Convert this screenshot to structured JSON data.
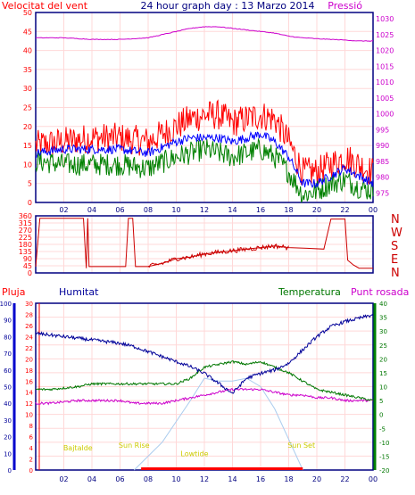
{
  "header": {
    "left_title": "Velocitat del vent",
    "center_title": "24 hour graph day : 13 Marzo 2014",
    "right_title": "Pressió"
  },
  "colors": {
    "wind_avg": "#0000ff",
    "gust": "#ff0000",
    "wind_min": "#008000",
    "pressure": "#cc00cc",
    "direction": "#cc0000",
    "humidity": "#000099",
    "temperature": "#007700",
    "dewpoint": "#cc00cc",
    "rain": "#ff0000",
    "solar": "#aaccee",
    "frame": "#000080",
    "grid": "#ffd8d8",
    "sun_labels": "#cccc00"
  },
  "chart_data": [
    {
      "type": "line",
      "name": "wind-pressure",
      "title": "24 hour graph day : 13 Marzo 2014",
      "ylabel": "Velocitat del vent",
      "y2label": "Pressió",
      "x_ticks": [
        "02",
        "04",
        "06",
        "08",
        "10",
        "12",
        "14",
        "16",
        "18",
        "20",
        "22",
        "00"
      ],
      "y_ticks": [
        0,
        5,
        10,
        15,
        20,
        25,
        30,
        35,
        40,
        45,
        50
      ],
      "y2_ticks": [
        975,
        980,
        985,
        990,
        995,
        1000,
        1005,
        1010,
        1015,
        1020,
        1025,
        1030
      ],
      "ylim": [
        0,
        50
      ],
      "y2lim": [
        972,
        1032
      ],
      "grid": true,
      "x_hours": [
        0,
        2,
        4,
        6,
        8,
        10,
        11,
        12,
        13,
        14,
        15,
        16,
        17,
        18,
        19,
        20,
        21,
        22,
        23,
        24
      ],
      "series": [
        {
          "key": "gust",
          "values": [
            15,
            16,
            17,
            17,
            16,
            20,
            22,
            23,
            23,
            21,
            22,
            23,
            22,
            16,
            8,
            8,
            10,
            12,
            10,
            8
          ]
        },
        {
          "key": "wind_avg",
          "values": [
            13,
            14,
            14,
            14,
            13,
            16,
            17,
            17,
            17,
            16,
            17,
            18,
            16,
            12,
            5,
            5,
            7,
            9,
            7,
            5
          ]
        },
        {
          "key": "wind_min",
          "values": [
            11,
            10,
            10,
            10,
            9,
            12,
            13,
            14,
            13,
            12,
            13,
            14,
            12,
            8,
            2,
            3,
            5,
            6,
            4,
            3
          ]
        },
        {
          "key": "pressure",
          "axis": "y2",
          "values": [
            1024,
            1024,
            1023.5,
            1023.5,
            1024,
            1026,
            1027,
            1027.5,
            1027.5,
            1027,
            1026.5,
            1026,
            1025.5,
            1024.5,
            1024,
            1023.7,
            1023.5,
            1023.3,
            1023,
            1023
          ]
        }
      ]
    },
    {
      "type": "line",
      "name": "wind-direction",
      "y_ticks": [
        0,
        45,
        90,
        135,
        180,
        225,
        270,
        315,
        360
      ],
      "y2_labels": [
        "N",
        "W",
        "S",
        "E",
        "N"
      ],
      "ylim": [
        0,
        360
      ],
      "x_hours": [
        0,
        0.3,
        0.8,
        2,
        3.4,
        3.6,
        3.7,
        3.8,
        4,
        5,
        6.4,
        6.6,
        6.9,
        7.1,
        8,
        9,
        10,
        11,
        12,
        13,
        14,
        15,
        16,
        17,
        18,
        19.3,
        20.5,
        21,
        22,
        22.2,
        22.6,
        23,
        24
      ],
      "values": [
        40,
        345,
        345,
        345,
        345,
        30,
        345,
        40,
        40,
        40,
        40,
        345,
        345,
        40,
        40,
        60,
        90,
        100,
        120,
        130,
        140,
        150,
        160,
        170,
        160,
        155,
        150,
        340,
        340,
        80,
        50,
        30,
        30
      ]
    },
    {
      "type": "line",
      "name": "humidity-temperature",
      "y_series_labels": [
        "Pluja",
        "Humitat",
        "Temperatura",
        "Punt rosada"
      ],
      "rain_ticks": [
        0,
        2,
        4,
        6,
        8,
        10,
        12,
        14,
        16,
        18,
        20,
        22,
        24,
        26,
        28,
        30
      ],
      "humidity_ticks": [
        0,
        10,
        20,
        30,
        40,
        50,
        60,
        70,
        80,
        90,
        100
      ],
      "temp_ticks": [
        -20,
        -15,
        -10,
        -5,
        0,
        5,
        10,
        15,
        20,
        25,
        30,
        35,
        40
      ],
      "temp_lim": [
        -20,
        40
      ],
      "humidity_lim": [
        0,
        100
      ],
      "x_ticks": [
        "02",
        "04",
        "06",
        "08",
        "10",
        "12",
        "14",
        "16",
        "18",
        "20",
        "22",
        "00"
      ],
      "x_hours": [
        0,
        1,
        2,
        3,
        4,
        5,
        6,
        7,
        8,
        9,
        10,
        11,
        12,
        13,
        14,
        15,
        16,
        17,
        18,
        19,
        20,
        21,
        22,
        23,
        24
      ],
      "series": [
        {
          "key": "humidity",
          "values": [
            82,
            81,
            80,
            79,
            78,
            77,
            76,
            74,
            71,
            68,
            65,
            62,
            58,
            52,
            46,
            55,
            58,
            60,
            64,
            72,
            80,
            86,
            89,
            91,
            93
          ]
        },
        {
          "key": "temperature",
          "values": [
            9,
            9,
            9.5,
            10,
            11,
            11,
            11,
            11,
            11,
            11,
            11,
            13,
            17,
            18,
            19,
            18,
            19,
            17,
            15,
            12,
            9,
            8,
            7,
            6,
            5
          ]
        },
        {
          "key": "dewpoint",
          "values": [
            4,
            4,
            4.5,
            5,
            5,
            5,
            5,
            4,
            4,
            4,
            5,
            6,
            7,
            8,
            9,
            9,
            9,
            8,
            7,
            7,
            6,
            6,
            5,
            5,
            5
          ]
        },
        {
          "key": "rain",
          "values": [
            0,
            0,
            0,
            0,
            0,
            0,
            0,
            0,
            0,
            0,
            0,
            0,
            0,
            0,
            0,
            0,
            0,
            0,
            0,
            0,
            0,
            0,
            0,
            0,
            0
          ]
        }
      ],
      "solar_hours": [
        7,
        9,
        11,
        12,
        13,
        14,
        15,
        16,
        17,
        19
      ],
      "solar_values": [
        -20,
        -10,
        5,
        13,
        12,
        12,
        13,
        10,
        2,
        -20
      ],
      "sun_events": [
        {
          "label": "Sun Rise",
          "hour": 7,
          "temp": -12
        },
        {
          "label": "Sun Set",
          "hour": 18.9,
          "temp": -12
        },
        {
          "label": "Bajtalde",
          "hour": 3,
          "temp": -13
        },
        {
          "label": "Lowtide",
          "hour": 11.3,
          "temp": -15
        }
      ],
      "panel_labels": {
        "left1": "Pluja",
        "left2": "Humitat",
        "right1": "Temperatura",
        "right2": "Punt rosada"
      }
    }
  ]
}
